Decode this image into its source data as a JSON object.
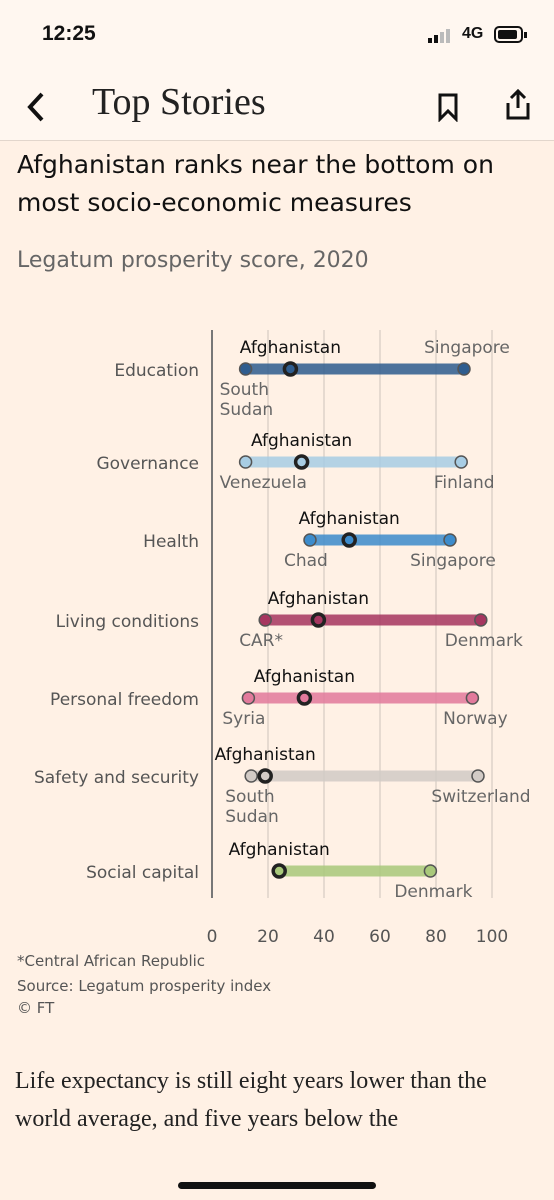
{
  "status_bar": {
    "time": "12:25",
    "network": "4G"
  },
  "nav": {
    "title": "Top Stories"
  },
  "chart_data": {
    "type": "range",
    "title": "Afghanistan ranks near the bottom on most socio-economic measures",
    "subtitle": "Legatum prosperity score, 2020",
    "highlight_label": "Afghanistan",
    "xlim": [
      0,
      100
    ],
    "xticks": [
      0,
      20,
      40,
      60,
      80,
      100
    ],
    "grid": true,
    "series": [
      {
        "name": "Education",
        "color": "#2f5d8f",
        "min": 12,
        "max": 90,
        "highlight": 28,
        "min_label": [
          "South",
          "Sudan"
        ],
        "max_label": "Singapore"
      },
      {
        "name": "Governance",
        "color": "#a8cde4",
        "min": 12,
        "max": 89,
        "highlight": 32,
        "min_label": [
          "Venezuela"
        ],
        "max_label": "Finland"
      },
      {
        "name": "Health",
        "color": "#3d8ccc",
        "min": 35,
        "max": 85,
        "highlight": 49,
        "min_label": [
          "Chad"
        ],
        "max_label": "Singapore"
      },
      {
        "name": "Living conditions",
        "color": "#a63660",
        "min": 19,
        "max": 96,
        "highlight": 38,
        "min_label": [
          "CAR*"
        ],
        "max_label": "Denmark"
      },
      {
        "name": "Personal freedom",
        "color": "#e27a9c",
        "min": 13,
        "max": 93,
        "highlight": 33,
        "min_label": [
          "Syria"
        ],
        "max_label": "Norway"
      },
      {
        "name": "Safety and security",
        "color": "#d2cbc6",
        "min": 14,
        "max": 95,
        "highlight": 19,
        "min_label": [
          "South",
          "Sudan"
        ],
        "max_label": "Switzerland"
      },
      {
        "name": "Social capital",
        "color": "#a9c97b",
        "min": 24,
        "max": 78,
        "highlight": 24,
        "min_label": [],
        "max_label": "Denmark"
      }
    ],
    "footnote": "*Central African Republic",
    "source": "Source: Legatum prosperity index",
    "copyright": "© FT"
  },
  "article": {
    "text": "Life expectancy is still eight years lower than the world average, and five years below the"
  }
}
